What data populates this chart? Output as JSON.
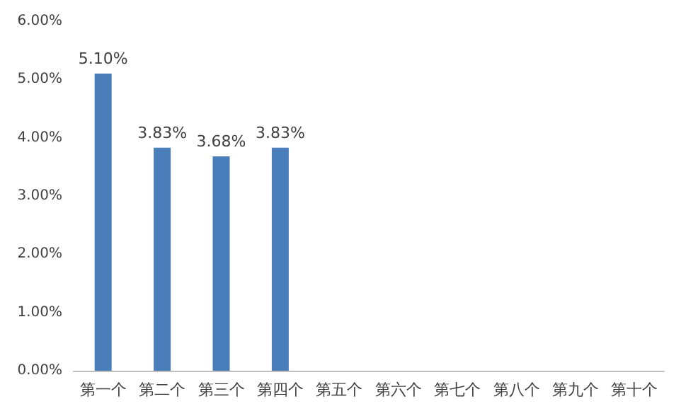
{
  "chart_data": {
    "type": "bar",
    "categories": [
      "第一个",
      "第二个",
      "第三个",
      "第四个",
      "第五个",
      "第六个",
      "第七个",
      "第八个",
      "第九个",
      "第十个"
    ],
    "values": [
      5.1,
      3.83,
      3.68,
      3.83,
      null,
      null,
      null,
      null,
      null,
      null
    ],
    "value_labels": [
      "5.10%",
      "3.83%",
      "3.68%",
      "3.83%",
      null,
      null,
      null,
      null,
      null,
      null
    ],
    "color": "#4a7ebb",
    "ylim": [
      0,
      6
    ],
    "yticks": [
      {
        "value": 0,
        "label": "0.00%"
      },
      {
        "value": 1,
        "label": "1.00%"
      },
      {
        "value": 2,
        "label": "2.00%"
      },
      {
        "value": 3,
        "label": "3.00%"
      },
      {
        "value": 4,
        "label": "4.00%"
      },
      {
        "value": 5,
        "label": "5.00%"
      },
      {
        "value": 6,
        "label": "6.00%"
      }
    ],
    "grid": false
  }
}
